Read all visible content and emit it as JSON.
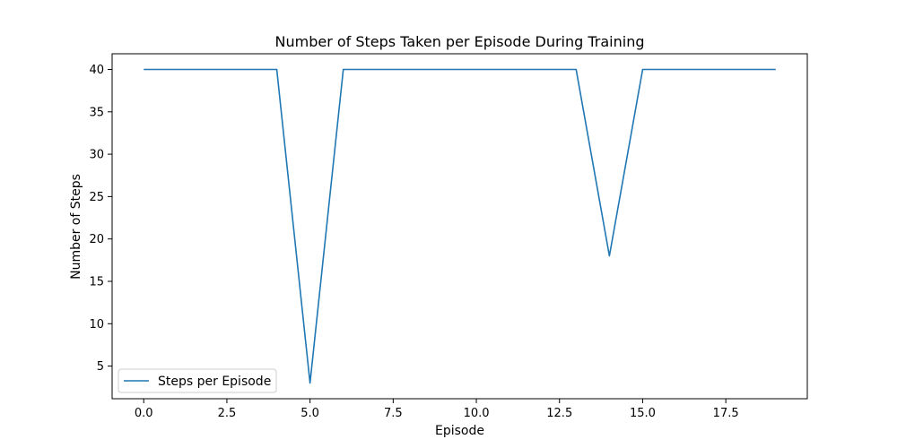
{
  "chart_data": {
    "type": "line",
    "title": "Number of Steps Taken per Episode During Training",
    "xlabel": "Episode",
    "ylabel": "Number of Steps",
    "xlim": [
      -0.95,
      19.95
    ],
    "ylim": [
      1.15,
      41.85
    ],
    "xticks": [
      0.0,
      2.5,
      5.0,
      7.5,
      10.0,
      12.5,
      15.0,
      17.5
    ],
    "xtick_labels": [
      "0.0",
      "2.5",
      "5.0",
      "7.5",
      "10.0",
      "12.5",
      "15.0",
      "17.5"
    ],
    "yticks": [
      5,
      10,
      15,
      20,
      25,
      30,
      35,
      40
    ],
    "ytick_labels": [
      "5",
      "10",
      "15",
      "20",
      "25",
      "30",
      "35",
      "40"
    ],
    "grid": false,
    "legend_position": "lower-left",
    "series": [
      {
        "name": "Steps per Episode",
        "color": "#1f77b4",
        "x": [
          0,
          1,
          2,
          3,
          4,
          5,
          6,
          7,
          8,
          9,
          10,
          11,
          12,
          13,
          14,
          15,
          16,
          17,
          18,
          19
        ],
        "y": [
          40,
          40,
          40,
          40,
          40,
          3,
          40,
          40,
          40,
          40,
          40,
          40,
          40,
          40,
          18,
          40,
          40,
          40,
          40,
          40
        ]
      }
    ]
  }
}
